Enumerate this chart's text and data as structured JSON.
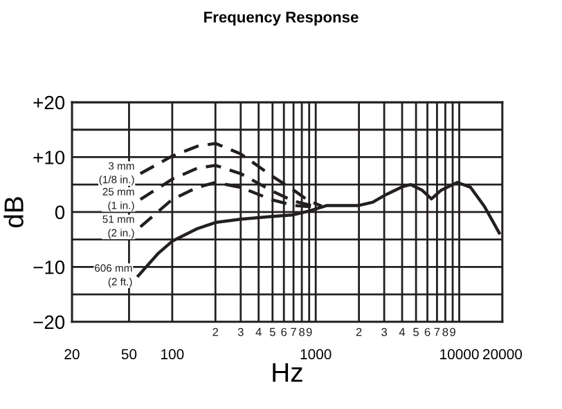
{
  "chart_data": {
    "type": "line",
    "title": "Frequency Response",
    "xlabel": "Hz",
    "ylabel": "dB",
    "log": "x",
    "grid": true,
    "xlim": [
      20,
      20000
    ],
    "ylim": [
      -20,
      20
    ],
    "xticks": [
      20,
      50,
      100,
      {
        "value": 200,
        "label": null
      },
      {
        "value": 300,
        "label": null
      },
      {
        "value": 400,
        "label": null
      },
      {
        "value": 500,
        "label": null
      },
      {
        "value": 600,
        "label": null
      },
      {
        "value": 700,
        "label": null
      },
      {
        "value": 800,
        "label": null
      },
      {
        "value": 900,
        "label": null
      },
      1000,
      {
        "value": 2000,
        "label": null
      },
      {
        "value": 3000,
        "label": null
      },
      {
        "value": 4000,
        "label": null
      },
      {
        "value": 5000,
        "label": null
      },
      {
        "value": 6000,
        "label": null
      },
      {
        "value": 7000,
        "label": null
      },
      {
        "value": 8000,
        "label": null
      },
      {
        "value": 9000,
        "label": null
      },
      10000,
      20000
    ],
    "yticks": [
      {
        "value": -20,
        "label": "−20"
      },
      {
        "value": -15,
        "label": null
      },
      {
        "value": -10,
        "label": "−10"
      },
      {
        "value": -5,
        "label": null
      },
      0,
      {
        "value": 5,
        "label": null
      },
      {
        "value": 10,
        "label": "+10"
      },
      {
        "value": 15,
        "label": null
      },
      {
        "value": 20,
        "label": "+20"
      }
    ],
    "series": [
      {
        "color": "#231f20",
        "line_style": "dashed",
        "x": [
          60,
          100,
          150,
          200,
          300,
          500,
          700,
          900,
          1100
        ],
        "values": [
          7,
          10.2,
          12,
          12.5,
          10.6,
          6.5,
          4,
          2,
          1.1
        ]
      },
      {
        "color": "#231f20",
        "line_style": "dashed",
        "x": [
          60,
          100,
          150,
          200,
          300,
          500,
          700,
          900,
          1100
        ],
        "values": [
          2.3,
          6,
          8,
          8.5,
          7,
          3.8,
          2,
          1.3,
          1.1
        ]
      },
      {
        "color": "#231f20",
        "line_style": "dashed",
        "x": [
          60,
          100,
          150,
          200,
          300,
          500,
          700,
          900,
          1100
        ],
        "values": [
          -2.7,
          2.3,
          4.5,
          5.4,
          4.5,
          2.2,
          1.2,
          1,
          1.1
        ]
      },
      {
        "color": "#231f20",
        "line_style": "solid",
        "x": [
          58,
          80,
          100,
          150,
          200,
          300,
          500,
          700,
          900,
          1200,
          2000,
          2500,
          3000,
          4000,
          4600,
          5500,
          6400,
          7500,
          9700,
          12000,
          15000,
          19000
        ],
        "values": [
          -11.6,
          -7.5,
          -5.3,
          -3,
          -1.9,
          -1.3,
          -0.8,
          -0.5,
          0.2,
          1.2,
          1.2,
          1.8,
          3,
          4.6,
          5,
          4,
          2.4,
          4,
          5.4,
          4.5,
          1,
          -3.8
        ]
      }
    ],
    "annotations": [
      "3 mm\n(1/8 in.)",
      "25 mm\n(1 in.)",
      "51 mm\n(2 in.)",
      "606 mm\n(2 ft.)",
      "2",
      "3",
      "4",
      "5",
      "6",
      "7",
      "8",
      "9",
      "2",
      "3",
      "4",
      "5",
      "6",
      "7",
      "8",
      "9"
    ]
  }
}
